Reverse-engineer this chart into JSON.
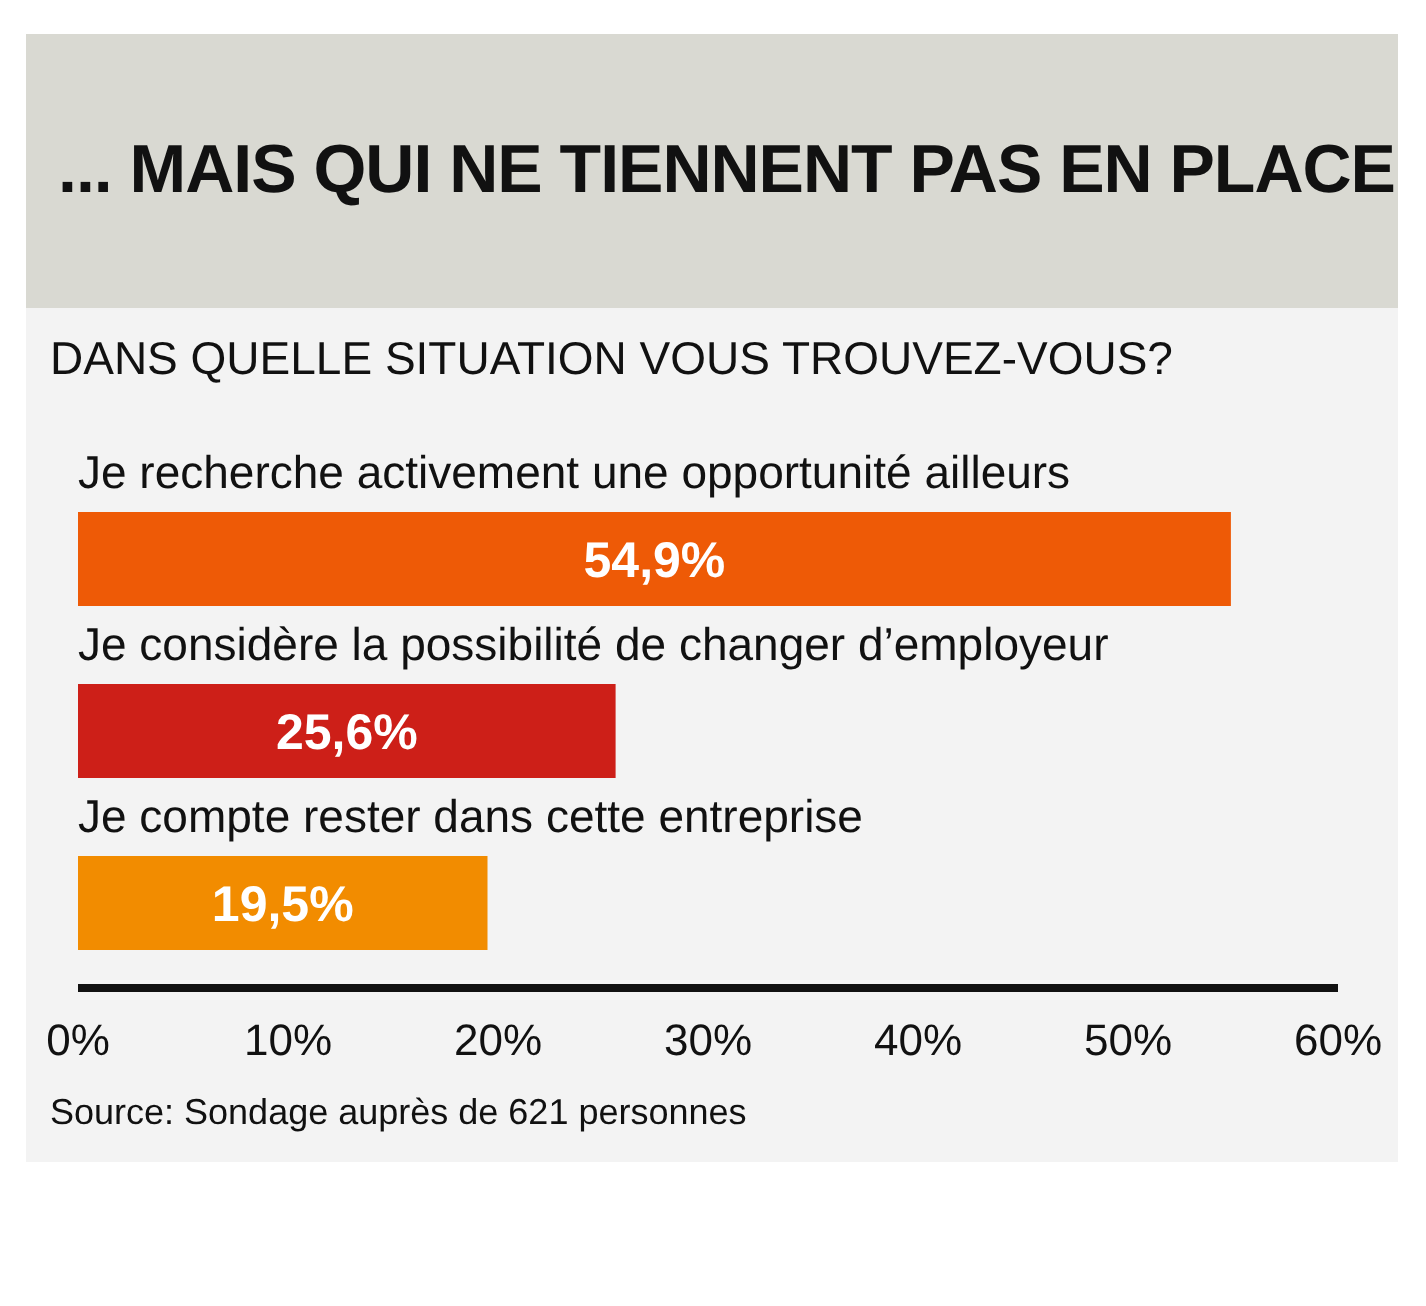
{
  "chart_data": {
    "type": "bar",
    "orientation": "horizontal",
    "title": "... MAIS QUI NE TIENNENT PAS EN PLACE",
    "subtitle": "DANS QUELLE SITUATION VOUS TROUVEZ-VOUS?",
    "categories": [
      "Je recherche activement une opportunité ailleurs",
      "Je considère la possibilité de changer d’employeur",
      "Je compte rester dans cette entreprise"
    ],
    "values": [
      54.9,
      25.6,
      19.5
    ],
    "colors": [
      "#ee5a06",
      "#cd1f18",
      "#f28c00"
    ],
    "value_labels": [
      "54,9%",
      "25,6%",
      "19,5%"
    ],
    "xlim": [
      0,
      60
    ],
    "xticks": [
      {
        "value": 0,
        "label": "0%"
      },
      {
        "value": 10,
        "label": "10%"
      },
      {
        "value": 20,
        "label": "20%"
      },
      {
        "value": 30,
        "label": "30%"
      },
      {
        "value": 40,
        "label": "40%"
      },
      {
        "value": 50,
        "label": "50%"
      },
      {
        "value": 60,
        "label": "60%"
      }
    ],
    "annotations": [
      "Source: Sondage auprès de 621 personnes"
    ]
  }
}
